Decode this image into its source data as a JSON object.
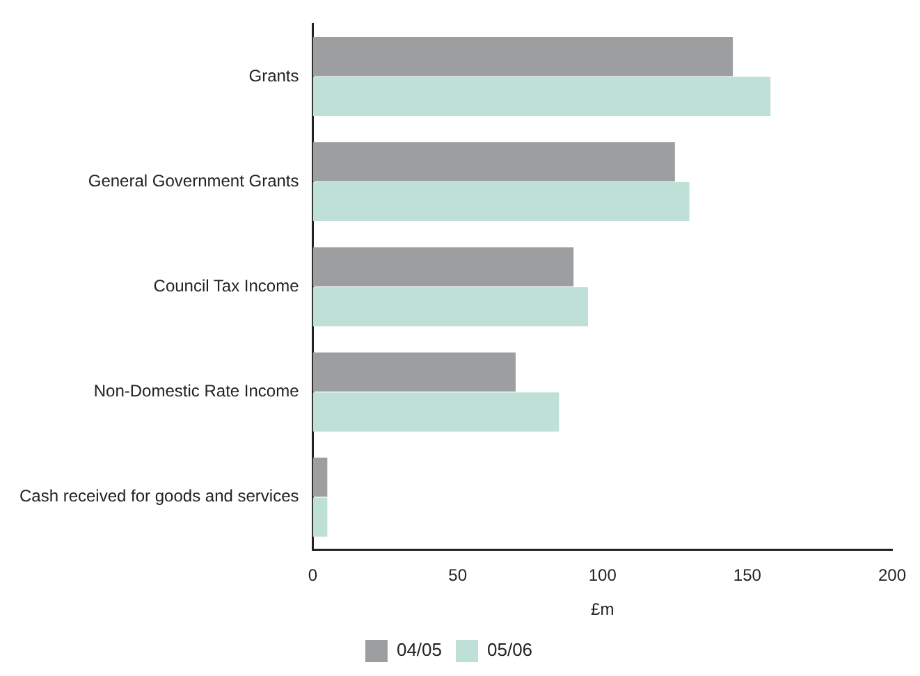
{
  "chart_data": {
    "type": "bar",
    "orientation": "horizontal",
    "xlabel": "£m",
    "categories": [
      "Grants",
      "General Government Grants",
      "Council Tax Income",
      "Non-Domestic Rate Income",
      "Cash received for goods and services"
    ],
    "series": [
      {
        "name": "04/05",
        "color": "#9d9ea0",
        "values": [
          145,
          125,
          90,
          70,
          5
        ]
      },
      {
        "name": "05/06",
        "color": "#bfe0d7",
        "values": [
          158,
          130,
          95,
          85,
          5
        ]
      }
    ],
    "xlim": [
      0,
      200
    ],
    "xticks": [
      0,
      50,
      100,
      150,
      200
    ],
    "grid": false,
    "legend": "bottom"
  }
}
